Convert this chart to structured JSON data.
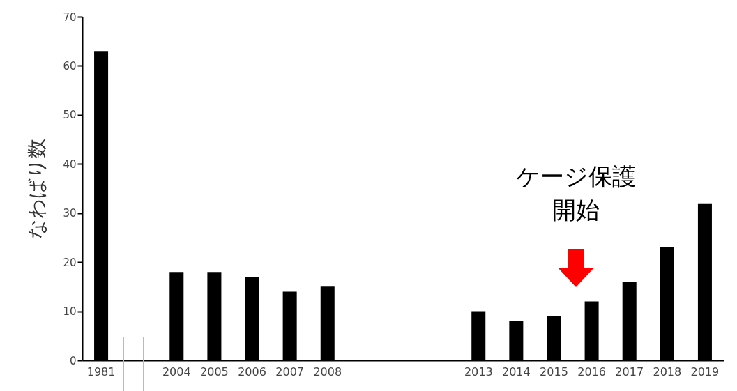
{
  "chart_data": {
    "type": "bar",
    "ylabel": "なわばり数",
    "categories": [
      "1981",
      null,
      "2004",
      "2005",
      "2006",
      "2007",
      "2008",
      null,
      null,
      null,
      "2013",
      "2014",
      "2015",
      "2016",
      "2017",
      "2018",
      "2019"
    ],
    "values": [
      63,
      null,
      18,
      18,
      17,
      14,
      15,
      null,
      null,
      null,
      10,
      8,
      9,
      12,
      16,
      23,
      32
    ],
    "color": "#000000",
    "ylim": [
      0,
      70
    ],
    "yticks": [
      0,
      10,
      20,
      30,
      40,
      50,
      60,
      70
    ],
    "grid": false,
    "annotations": [
      "ケージ保護",
      "開始"
    ]
  }
}
